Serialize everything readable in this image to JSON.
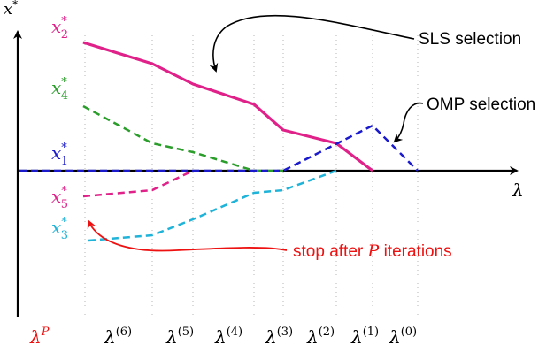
{
  "axes": {
    "y_symbol": "x",
    "y_sup": "*",
    "x_symbol": "λ"
  },
  "curve_labels": [
    {
      "id": "x2",
      "base": "x",
      "sub": "2",
      "sup": "*",
      "color": "#e0218a"
    },
    {
      "id": "x4",
      "base": "x",
      "sub": "4",
      "sup": "*",
      "color": "#2a9d2a"
    },
    {
      "id": "x1",
      "base": "x",
      "sub": "1",
      "sup": "*",
      "color": "#1a1acc"
    },
    {
      "id": "x5",
      "base": "x",
      "sub": "5",
      "sup": "*",
      "color": "#e0218a"
    },
    {
      "id": "x3",
      "base": "x",
      "sub": "3",
      "sup": "*",
      "color": "#1fb3d9"
    }
  ],
  "lambda_ticks": [
    {
      "id": "lp",
      "base": "λ",
      "sup": "P",
      "color": "#ee1111"
    },
    {
      "id": "l6",
      "base": "λ",
      "sup": "(6)",
      "color": "#000000"
    },
    {
      "id": "l5",
      "base": "λ",
      "sup": "(5)",
      "color": "#000000"
    },
    {
      "id": "l4",
      "base": "λ",
      "sup": "(4)",
      "color": "#000000"
    },
    {
      "id": "l3",
      "base": "λ",
      "sup": "(3)",
      "color": "#000000"
    },
    {
      "id": "l2",
      "base": "λ",
      "sup": "(2)",
      "color": "#000000"
    },
    {
      "id": "l1",
      "base": "λ",
      "sup": "(1)",
      "color": "#000000"
    },
    {
      "id": "l0",
      "base": "λ",
      "sup": "(0)",
      "color": "#000000"
    }
  ],
  "annotations": {
    "sls": "SLS selection",
    "omp": "OMP selection",
    "stop_prefix": "stop after ",
    "stop_var": "P",
    "stop_suffix": " iterations",
    "stop_color": "#ee1111"
  }
}
